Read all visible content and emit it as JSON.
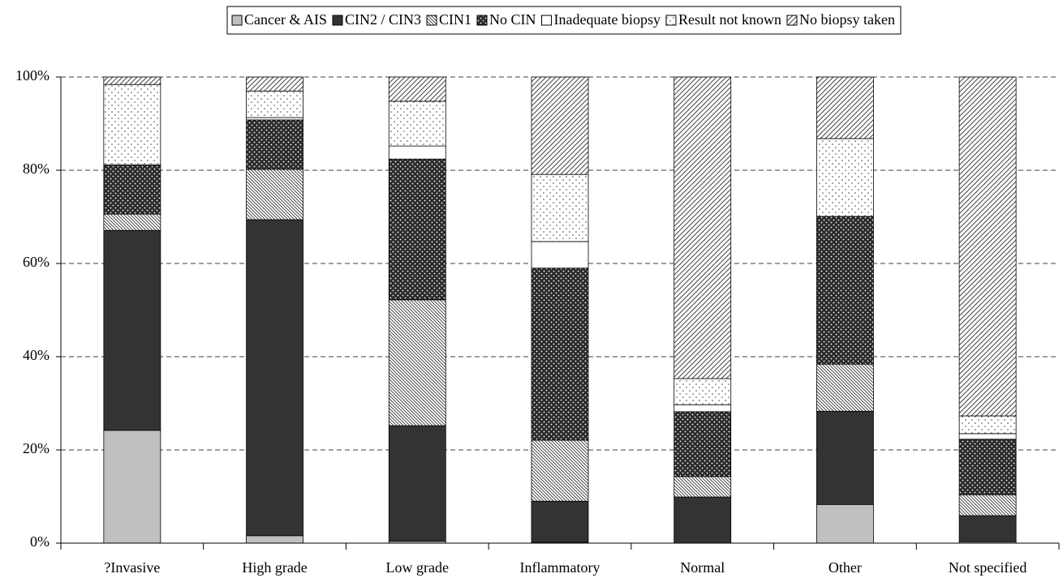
{
  "chart_data": {
    "type": "stacked-bar",
    "categories": [
      "?Invasive",
      "High grade",
      "Low grade",
      "Inflammatory",
      "Normal",
      "Other",
      "Not specified"
    ],
    "series": [
      {
        "name": "Cancer & AIS",
        "color": "#c0c0c0",
        "pattern": "solid",
        "values": [
          24.2,
          1.6,
          0.4,
          0.2,
          0,
          8.3,
          0.3
        ]
      },
      {
        "name": "CIN2 / CIN3",
        "color": "#333333",
        "pattern": "solid",
        "values": [
          42.9,
          67.8,
          24.8,
          8.8,
          9.9,
          20.0,
          5.6
        ]
      },
      {
        "name": "CIN1",
        "color": "#ffffff",
        "pattern": "dense-diagonal",
        "values": [
          3.5,
          10.8,
          27.0,
          13.1,
          4.4,
          10.1,
          4.5
        ]
      },
      {
        "name": "No CIN",
        "color": "#888888",
        "pattern": "dots",
        "values": [
          10.4,
          10.6,
          30.2,
          36.9,
          13.9,
          31.7,
          11.9
        ]
      },
      {
        "name": "Inadequate biopsy",
        "color": "#ffffff",
        "pattern": "solid",
        "values": [
          0.2,
          0.5,
          2.8,
          5.7,
          1.5,
          0,
          1.2
        ]
      },
      {
        "name": "Result not known",
        "color": "#ffffff",
        "pattern": "sparse-dots",
        "values": [
          17.2,
          5.7,
          9.6,
          14.4,
          5.6,
          16.7,
          3.8
        ]
      },
      {
        "name": "No biopsy taken",
        "color": "#ffffff",
        "pattern": "wide-diagonal",
        "values": [
          1.6,
          3.0,
          5.2,
          20.9,
          64.7,
          13.2,
          72.7
        ]
      }
    ],
    "ylim": [
      0,
      100
    ],
    "yticks": [
      {
        "value": 0,
        "label": "0%"
      },
      {
        "value": 20,
        "label": "20%"
      },
      {
        "value": 40,
        "label": "40%"
      },
      {
        "value": 60,
        "label": "60%"
      },
      {
        "value": 80,
        "label": "80%"
      },
      {
        "value": 100,
        "label": "100%"
      }
    ],
    "grid": true,
    "legend": "top"
  }
}
